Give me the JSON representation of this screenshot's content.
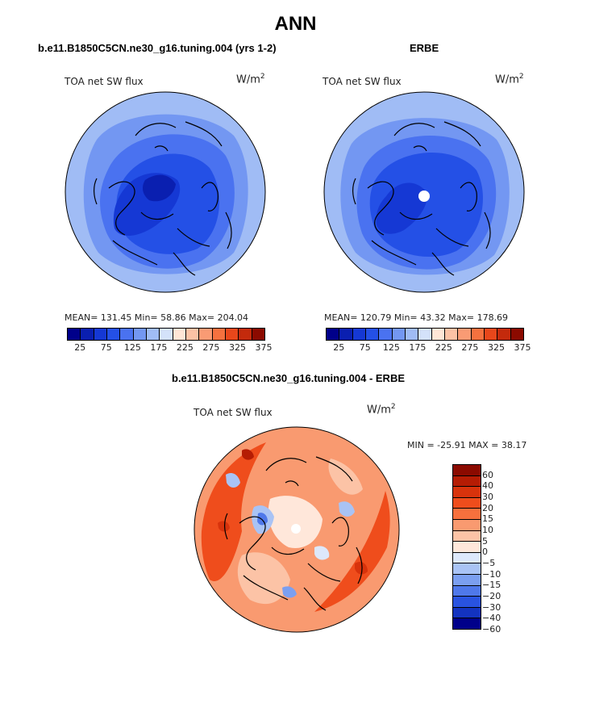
{
  "main_title": "ANN",
  "panels": [
    {
      "title": "b.e11.B1850C5CN.ne30_g16.tuning.004 (yrs 1-2)",
      "variable": "TOA net SW flux",
      "units": "W/m",
      "units_exp": "2",
      "stats": "MEAN= 131.45   Min=  58.86   Max= 204.04",
      "colorbar_labels": [
        "25",
        "75",
        "125",
        "175",
        "225",
        "275",
        "325",
        "375"
      ]
    },
    {
      "title": "ERBE",
      "variable": "TOA net SW flux",
      "units": "W/m",
      "units_exp": "2",
      "stats": "MEAN= 120.79   Min=  43.32   Max= 178.69",
      "colorbar_labels": [
        "25",
        "75",
        "125",
        "175",
        "225",
        "275",
        "325",
        "375"
      ]
    },
    {
      "title": "b.e11.B1850C5CN.ne30_g16.tuning.004 - ERBE",
      "variable": "TOA net SW flux",
      "units": "W/m",
      "units_exp": "2",
      "stats": "MIN =  -25.91  MAX =   38.17",
      "colorbar_labels": [
        "60",
        "40",
        "30",
        "20",
        "15",
        "10",
        "5",
        "0",
        "−5",
        "−10",
        "−15",
        "−20",
        "−30",
        "−40",
        "−60"
      ]
    }
  ],
  "colors": {
    "abs_scale": [
      "#00008a",
      "#0a1fb0",
      "#1538d4",
      "#2450e6",
      "#4a72f0",
      "#7397f2",
      "#a0bcf5",
      "#d4e2fa",
      "#ffe6d6",
      "#fcc2a5",
      "#f99b74",
      "#f5713f",
      "#e8471b",
      "#c42a0c",
      "#8b0a00"
    ],
    "diff_scale": [
      "#8b0a00",
      "#b51c04",
      "#d8330c",
      "#ef4d1c",
      "#f7703d",
      "#f99a70",
      "#fcc3a6",
      "#ffe7da",
      "#dde8fb",
      "#a9c3f5",
      "#7b9ff0",
      "#4f78ea",
      "#2953e0",
      "#1333c0",
      "#00008a"
    ]
  }
}
